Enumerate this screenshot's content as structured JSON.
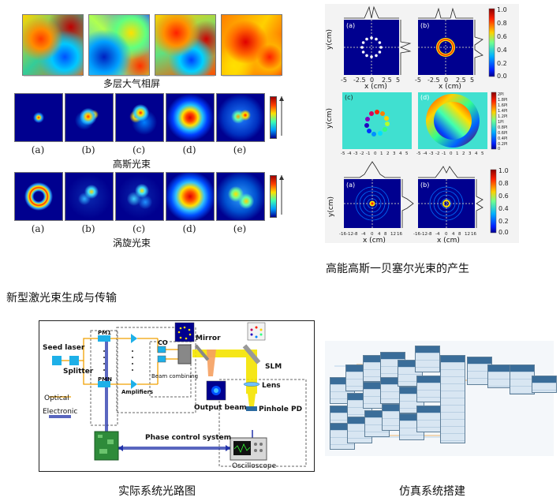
{
  "top_left": {
    "caption_atmosphere": "多层大气相屏",
    "caption_gaussian": "高斯光束",
    "caption_vortex": "涡旋光束",
    "sub_labels": [
      "(a)",
      "(b)",
      "(c)",
      "(d)",
      "(e)"
    ]
  },
  "top_right": {
    "caption": "高能高斯一贝塞尔光束的产生",
    "panel_labels": [
      "(a)",
      "(b)",
      "(c)",
      "(d)",
      "(a)",
      "(b)"
    ],
    "axis_x": "x (cm)",
    "axis_y": "y(cm)",
    "ticks_a": [
      "-5",
      "-2.5",
      "0",
      "2.5",
      "5"
    ],
    "ticks_b": [
      "-16",
      "-12",
      "-8",
      "-4",
      "0",
      "4",
      "8",
      "12",
      "16"
    ],
    "ticks_mid": [
      "-5",
      "-4",
      "-3",
      "-2",
      "-1",
      "0",
      "1",
      "2",
      "3",
      "4",
      "5"
    ],
    "colorbar_ticks": [
      "1.0",
      "0.8",
      "0.6",
      "0.4",
      "0.2",
      "0.0"
    ],
    "phase_ticks": [
      "2PI",
      "1.8PI",
      "1.6PI",
      "1.4PI",
      "1.2PI",
      "1PI",
      "0.8PI",
      "0.6PI",
      "0.4PI",
      "0.2PI",
      "0"
    ]
  },
  "mid_left": {
    "caption": "新型激光束生成与传输"
  },
  "optical_diagram": {
    "caption": "实际系统光路图",
    "seed_laser": "Seed laser",
    "splitter": "Splitter",
    "optical": "Optical",
    "electronic": "Electronic",
    "pm1": "PM1",
    "pmn": "PMN",
    "amplifiers": "Amplifiers",
    "co": "CO",
    "beam_combining": "Beam combining",
    "mirror": "Mirror",
    "slm": "SLM",
    "lens": "Lens",
    "pinhole_pd": "Pinhole PD",
    "output_beam": "Output beam",
    "phase_control_system": "Phase control system",
    "oscilloscope": "Oscilloscope"
  },
  "simulation": {
    "caption": "仿真系统搭建"
  },
  "colors": {
    "optical_line": "#f0a000",
    "electronic_line": "#2233aa",
    "beam_yellow": "#f5e400",
    "jet_blue": "#00008f"
  }
}
